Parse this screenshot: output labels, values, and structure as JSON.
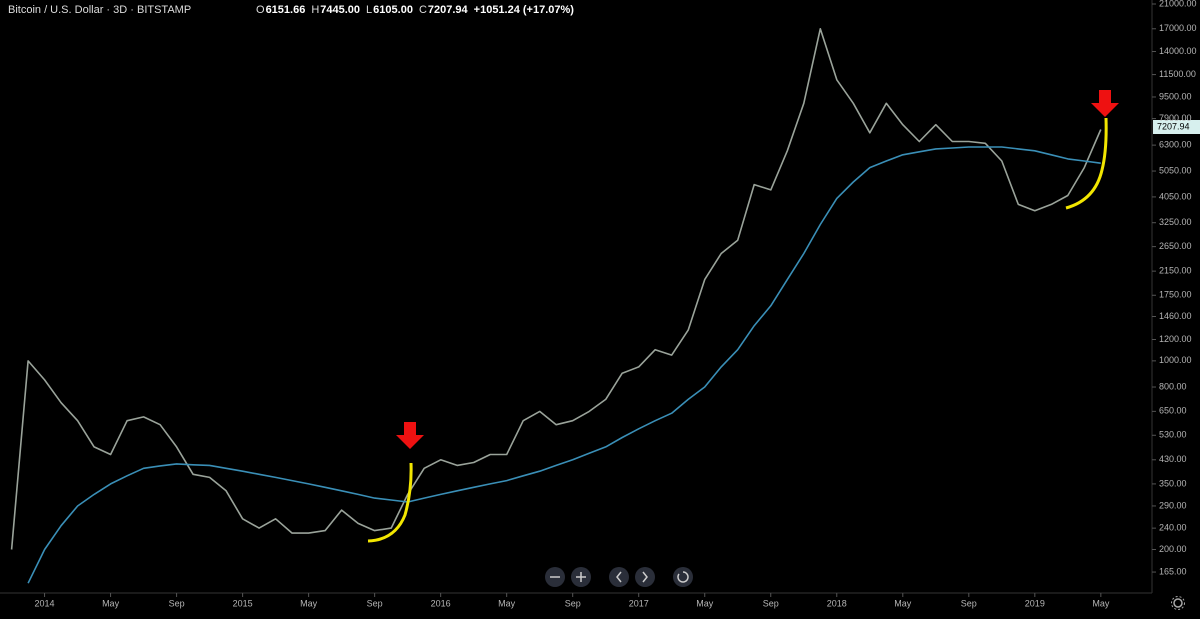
{
  "chart_data": {
    "type": "line",
    "title": "Bitcoin / U.S. Dollar · 3D · BITSTAMP",
    "ohlc": [
      {
        "key": "O",
        "value": "6151.66"
      },
      {
        "key": "H",
        "value": "7445.00"
      },
      {
        "key": "L",
        "value": "6105.00"
      },
      {
        "key": "C",
        "value": "7207.94"
      }
    ],
    "change": "+1051.24 (+17.07%)",
    "log_scale": true,
    "x": [
      -2,
      -1,
      0,
      1,
      2,
      3,
      4,
      5,
      6,
      7,
      8,
      9,
      10,
      11,
      12,
      13,
      14,
      15,
      16,
      17,
      18,
      19,
      20,
      21,
      22,
      23,
      24,
      25,
      26,
      27,
      28,
      29,
      30,
      31,
      32,
      33,
      34,
      35,
      36,
      37,
      38,
      39,
      40,
      41,
      42,
      43,
      44,
      45,
      46,
      47,
      48,
      49,
      50,
      51,
      52,
      53,
      54,
      55,
      56,
      57,
      58,
      59,
      60,
      61,
      62,
      63,
      64
    ],
    "series": [
      {
        "color": "#9aa39a",
        "values": [
          200,
          1000,
          850,
          700,
          600,
          480,
          450,
          600,
          620,
          580,
          480,
          380,
          370,
          330,
          260,
          240,
          260,
          230,
          230,
          235,
          280,
          250,
          235,
          240,
          320,
          400,
          430,
          410,
          420,
          450,
          450,
          600,
          650,
          580,
          600,
          650,
          720,
          900,
          950,
          1100,
          1050,
          1300,
          2000,
          2500,
          2800,
          4500,
          4300,
          6000,
          9000,
          17000,
          11000,
          9000,
          7000,
          9000,
          7500,
          6500,
          7500,
          6500,
          6500,
          6400,
          5500,
          3800,
          3600,
          3800,
          4100,
          5200,
          7200
        ]
      },
      {
        "color": "#3a8fb7",
        "values": [
          null,
          150,
          200,
          245,
          290,
          320,
          350,
          375,
          400,
          408,
          415,
          412,
          410,
          400,
          390,
          380,
          370,
          360,
          350,
          340,
          330,
          320,
          310,
          305,
          300,
          310,
          320,
          330,
          340,
          350,
          360,
          375,
          390,
          410,
          430,
          455,
          480,
          520,
          560,
          600,
          640,
          720,
          800,
          950,
          1100,
          1350,
          1600,
          2000,
          2500,
          3200,
          4000,
          4600,
          5200,
          5500,
          5800,
          5950,
          6100,
          6150,
          6200,
          6200,
          6200,
          6100,
          6000,
          5800,
          5600,
          5500,
          5400
        ]
      }
    ],
    "xlim": [
      -2.7,
      67.1
    ],
    "xticks": [
      {
        "value": 0,
        "label": "2014"
      },
      {
        "value": 4,
        "label": "May"
      },
      {
        "value": 8,
        "label": "Sep"
      },
      {
        "value": 12,
        "label": "2015"
      },
      {
        "value": 16,
        "label": "May"
      },
      {
        "value": 20,
        "label": "Sep"
      },
      {
        "value": 24,
        "label": "2016"
      },
      {
        "value": 28,
        "label": "May"
      },
      {
        "value": 32,
        "label": "Sep"
      },
      {
        "value": 36,
        "label": "2017"
      },
      {
        "value": 40,
        "label": "May"
      },
      {
        "value": 44,
        "label": "Sep"
      },
      {
        "value": 48,
        "label": "2018"
      },
      {
        "value": 52,
        "label": "May"
      },
      {
        "value": 56,
        "label": "Sep"
      },
      {
        "value": 60,
        "label": "2019"
      },
      {
        "value": 64,
        "label": "May"
      }
    ],
    "ylim": [
      138,
      21730
    ],
    "yticks": [
      {
        "value": 165,
        "label": "165.00"
      },
      {
        "value": 200,
        "label": "200.00"
      },
      {
        "value": 240,
        "label": "240.00"
      },
      {
        "value": 290,
        "label": "290.00"
      },
      {
        "value": 350,
        "label": "350.00"
      },
      {
        "value": 430,
        "label": "430.00"
      },
      {
        "value": 530,
        "label": "530.00"
      },
      {
        "value": 650,
        "label": "650.00"
      },
      {
        "value": 800,
        "label": "800.00"
      },
      {
        "value": 1000,
        "label": "1000.00"
      },
      {
        "value": 1200,
        "label": "1200.00"
      },
      {
        "value": 1460,
        "label": "1460.00"
      },
      {
        "value": 1750,
        "label": "1750.00"
      },
      {
        "value": 2150,
        "label": "2150.00"
      },
      {
        "value": 2650,
        "label": "2650.00"
      },
      {
        "value": 3250,
        "label": "3250.00"
      },
      {
        "value": 4050,
        "label": "4050.00"
      },
      {
        "value": 5050,
        "label": "5050.00"
      },
      {
        "value": 6300,
        "label": "6300.00"
      },
      {
        "value": 7900,
        "label": "7900.00"
      },
      {
        "value": 9500,
        "label": "9500.00"
      },
      {
        "value": 11500,
        "label": "11500.00"
      },
      {
        "value": 14000,
        "label": "14000.00"
      },
      {
        "value": 17000,
        "label": "17000.00"
      },
      {
        "value": 21000,
        "label": "21000.00"
      }
    ]
  }
}
